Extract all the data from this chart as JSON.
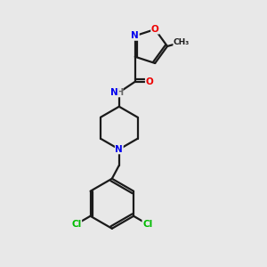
{
  "background_color": "#e8e8e8",
  "bond_color": "#1a1a1a",
  "atom_colors": {
    "N": "#0000ee",
    "O": "#ee0000",
    "Cl": "#00bb00",
    "C": "#1a1a1a",
    "H": "#666666"
  },
  "lw": 1.6,
  "fontsize": 7.5
}
